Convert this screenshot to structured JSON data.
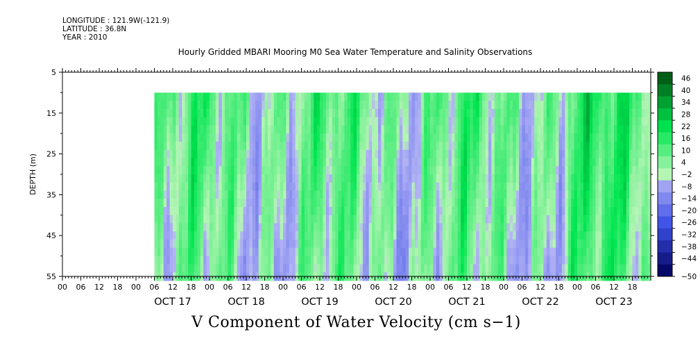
{
  "header": {
    "longitude": "LONGITUDE : 121.9W(-121.9)",
    "latitude": "LATITUDE : 36.8N",
    "year": "YEAR : 2010"
  },
  "chart_data": {
    "type": "heatmap",
    "title": "Hourly Gridded MBARI Mooring M0 Sea Water Temperature and Salinity Observations",
    "variable_label": "V Component of Water Velocity (cm s−1)",
    "ylabel": "DEPTH (m)",
    "y_axis": {
      "range": [
        5,
        55
      ],
      "inverted": true,
      "tick_labels": [
        5,
        15,
        25,
        35,
        45,
        55
      ],
      "minor_ticks": [
        10,
        20,
        30,
        40,
        50
      ]
    },
    "x_axis": {
      "start": "2010-10-16T00:00",
      "end": "2010-10-23T23:00",
      "hour_labels": [
        "00",
        "06",
        "12",
        "18"
      ],
      "day_labels": [
        "OCT 17",
        "OCT 18",
        "OCT 19",
        "OCT 20",
        "OCT 21",
        "OCT 22",
        "OCT 23"
      ],
      "data_start": "2010-10-17T06:00",
      "data_depth_top": 10
    },
    "colorbar": {
      "min": -50,
      "max": 50,
      "tick_labels": [
        46,
        40,
        34,
        28,
        22,
        16,
        10,
        4,
        -2,
        -8,
        -14,
        -20,
        -26,
        -32,
        -38,
        -44,
        -50
      ]
    },
    "colors": {
      "neg_strong": "#00005a",
      "neg_mid": "#3c50e6",
      "neg_light": "#b4b4f5",
      "pos_light": "#b4f5b4",
      "pos_mid": "#00e650",
      "pos_strong": "#005a14"
    }
  }
}
